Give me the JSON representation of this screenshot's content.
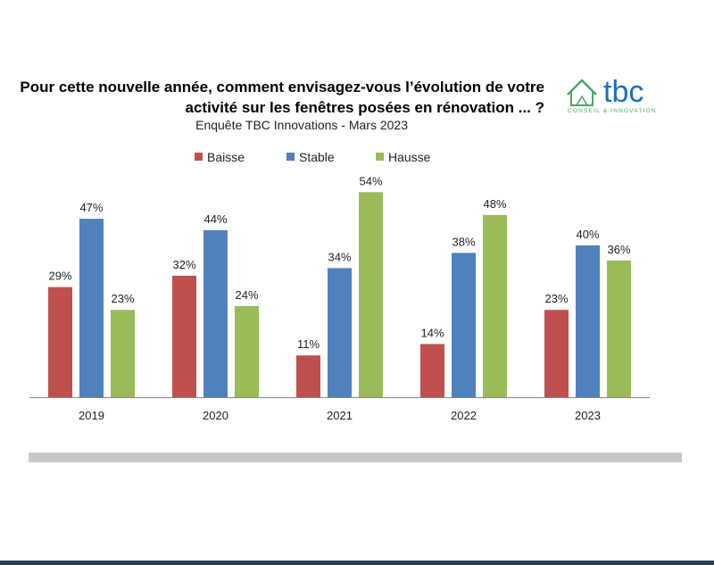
{
  "header": {
    "title_line1": "Pour cette nouvelle année, comment envisagez-vous l’évolution de votre",
    "title_line2": "activité sur les fenêtres posées en rénovation ... ?",
    "subtitle": "Enquête TBC Innovations - Mars 2023"
  },
  "logo": {
    "text": "tbc",
    "tagline": "CONSEIL & INNOVATION",
    "colors": {
      "text": "#1e6fb8",
      "house": "#4aa564"
    },
    "icon": "house-icon"
  },
  "chart_data": {
    "type": "bar",
    "categories": [
      "2019",
      "2020",
      "2021",
      "2022",
      "2023"
    ],
    "series": [
      {
        "name": "Baisse",
        "color": "#c0504d",
        "values": [
          29,
          32,
          11,
          14,
          23
        ],
        "labels": [
          "29%",
          "32%",
          "11%",
          "14%",
          "23%"
        ]
      },
      {
        "name": "Stable",
        "color": "#4f81bd",
        "values": [
          47,
          44,
          34,
          38,
          40
        ],
        "labels": [
          "47%",
          "44%",
          "34%",
          "38%",
          "40%"
        ]
      },
      {
        "name": "Hausse",
        "color": "#9bbb59",
        "values": [
          23,
          24,
          54,
          48,
          36
        ],
        "labels": [
          "23%",
          "24%",
          "54%",
          "48%",
          "36%"
        ]
      }
    ],
    "ylim": [
      0,
      60
    ],
    "grid": false,
    "legend_position": "top"
  }
}
